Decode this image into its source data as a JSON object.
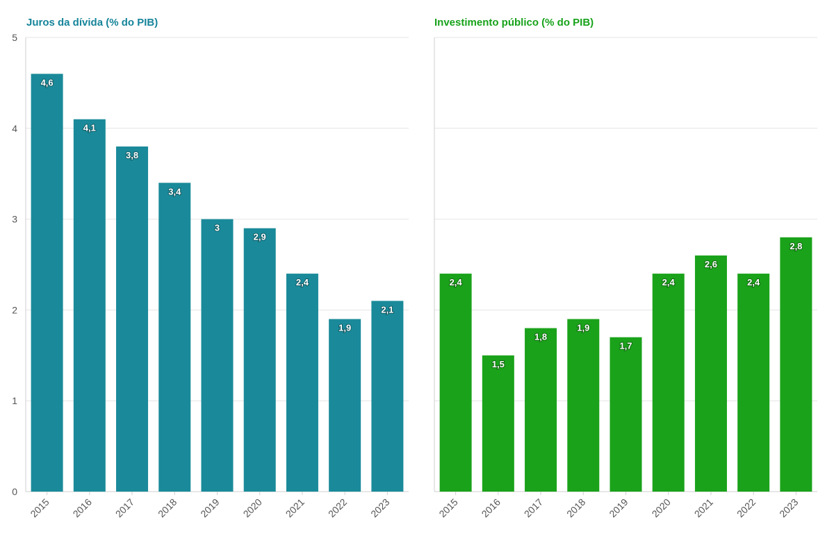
{
  "chart_data": [
    {
      "type": "bar",
      "title": "Juros da dívida (% do PIB)",
      "color": "#1a8a9a",
      "title_color": "#15849a",
      "categories": [
        "2015",
        "2016",
        "2017",
        "2018",
        "2019",
        "2020",
        "2021",
        "2022",
        "2023"
      ],
      "values": [
        4.6,
        4.1,
        3.8,
        3.4,
        3.0,
        2.9,
        2.4,
        1.9,
        2.1
      ],
      "value_labels": [
        "4,6",
        "4,1",
        "3,8",
        "3,4",
        "3",
        "2,9",
        "2,4",
        "1,9",
        "2,1"
      ],
      "ylim": [
        0,
        5
      ],
      "yticks": [
        "0",
        "1",
        "2",
        "3",
        "4",
        "5"
      ],
      "xlabel": "",
      "ylabel": ""
    },
    {
      "type": "bar",
      "title": "Investimento público (% do PIB)",
      "color": "#1aa21a",
      "title_color": "#17a21a",
      "categories": [
        "2015",
        "2016",
        "2017",
        "2018",
        "2019",
        "2020",
        "2021",
        "2022",
        "2023"
      ],
      "values": [
        2.4,
        1.5,
        1.8,
        1.9,
        1.7,
        2.4,
        2.6,
        2.4,
        2.8
      ],
      "value_labels": [
        "2,4",
        "1,5",
        "1,8",
        "1,9",
        "1,7",
        "2,4",
        "2,6",
        "2,4",
        "2,8"
      ],
      "ylim": [
        0,
        5
      ],
      "xlabel": "",
      "ylabel": ""
    }
  ]
}
